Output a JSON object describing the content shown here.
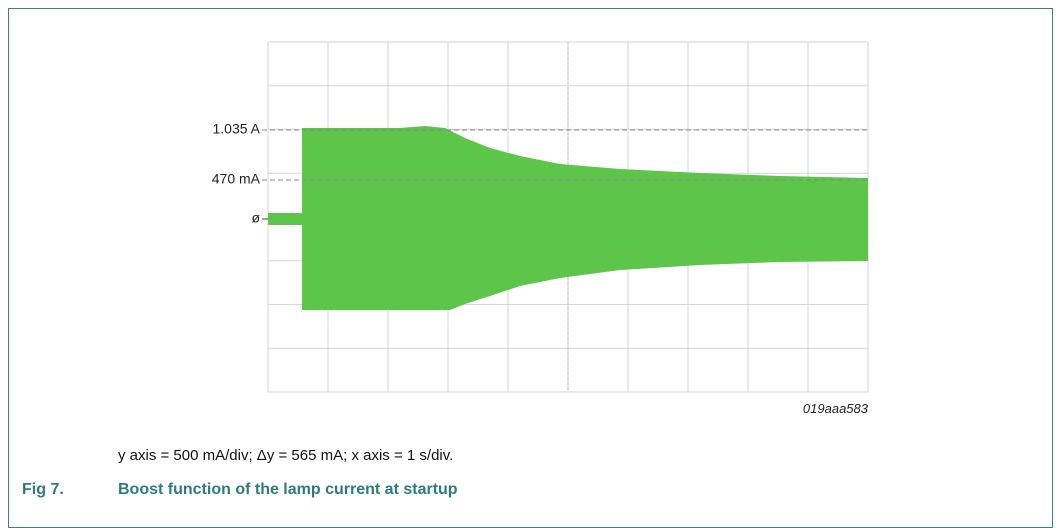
{
  "figure": {
    "levels": [
      "1.035 A",
      "470 mA",
      "ø"
    ],
    "code": "019aaa583",
    "caption": "y axis = 500 mA/div; Δy = 565 mA; x axis = 1 s/div.",
    "number": "Fig 7.",
    "title": "Boost function of the lamp current at startup"
  }
}
